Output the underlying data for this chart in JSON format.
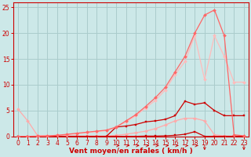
{
  "bg_color": "#cce8e8",
  "grid_color": "#aacccc",
  "xlabel": "Vent moyen/en rafales ( km/h )",
  "xlabel_color": "#cc0000",
  "xlabel_fontsize": 6.5,
  "tick_color": "#cc0000",
  "tick_fontsize": 5.5,
  "xlim": [
    -0.5,
    23.5
  ],
  "ylim": [
    0,
    26
  ],
  "yticks": [
    0,
    5,
    10,
    15,
    20,
    25
  ],
  "xticks": [
    0,
    1,
    2,
    3,
    4,
    5,
    6,
    7,
    8,
    9,
    10,
    11,
    12,
    13,
    14,
    15,
    16,
    17,
    18,
    19,
    20,
    21,
    22,
    23
  ],
  "line_pale_topleft": {
    "x": [
      0,
      1,
      2,
      3,
      4,
      5,
      6,
      7,
      8,
      9,
      10,
      11,
      12,
      13,
      14,
      15,
      16,
      17,
      18,
      19,
      20,
      21,
      22,
      23
    ],
    "y": [
      5.3,
      3.0,
      0.15,
      0.1,
      0.05,
      0.05,
      0.05,
      0.05,
      0.05,
      0.05,
      0.2,
      0.4,
      0.7,
      1.0,
      1.5,
      2.2,
      3.0,
      3.5,
      3.5,
      3.0,
      0.3,
      0.1,
      0.05,
      0.05
    ],
    "color": "#ffaaaa",
    "lw": 0.9,
    "marker": "D",
    "ms": 2.0
  },
  "line_darkred_bottom": {
    "x": [
      0,
      1,
      2,
      3,
      4,
      5,
      6,
      7,
      8,
      9,
      10,
      11,
      12,
      13,
      14,
      15,
      16,
      17,
      18,
      19,
      20,
      21,
      22,
      23
    ],
    "y": [
      0.0,
      0.0,
      0.0,
      0.0,
      0.0,
      0.0,
      0.0,
      0.0,
      0.0,
      0.0,
      0.0,
      0.0,
      0.0,
      0.05,
      0.05,
      0.1,
      0.2,
      0.4,
      0.9,
      0.0,
      0.0,
      0.0,
      0.0,
      0.0
    ],
    "color": "#cc0000",
    "lw": 0.9,
    "marker": "s",
    "ms": 2.0
  },
  "line_darkred_mid": {
    "x": [
      0,
      1,
      2,
      3,
      4,
      5,
      6,
      7,
      8,
      9,
      10,
      11,
      12,
      13,
      14,
      15,
      16,
      17,
      18,
      19,
      20,
      21,
      22,
      23
    ],
    "y": [
      0.0,
      0.0,
      0.0,
      0.0,
      0.0,
      0.0,
      0.0,
      0.0,
      0.0,
      0.0,
      1.8,
      2.0,
      2.3,
      2.8,
      3.0,
      3.3,
      4.0,
      6.8,
      6.2,
      6.5,
      5.0,
      4.0,
      4.0,
      4.0
    ],
    "color": "#cc0000",
    "lw": 0.9,
    "marker": "s",
    "ms": 2.0
  },
  "line_pink_upper": {
    "x": [
      0,
      1,
      2,
      3,
      4,
      5,
      6,
      7,
      8,
      9,
      10,
      11,
      12,
      13,
      14,
      15,
      16,
      17,
      18,
      19,
      20,
      21,
      22,
      23
    ],
    "y": [
      0.0,
      0.0,
      0.05,
      0.1,
      0.2,
      0.4,
      0.6,
      0.8,
      1.0,
      1.2,
      1.8,
      3.0,
      4.2,
      5.8,
      7.5,
      9.5,
      12.5,
      15.5,
      20.0,
      23.5,
      24.5,
      19.5,
      0.3,
      0.1
    ],
    "color": "#ff6666",
    "lw": 0.9,
    "marker": "D",
    "ms": 2.0
  },
  "line_light_pink_top": {
    "x": [
      0,
      1,
      2,
      3,
      4,
      5,
      6,
      7,
      8,
      9,
      10,
      11,
      12,
      13,
      14,
      15,
      16,
      17,
      18,
      19,
      20,
      21,
      22,
      23
    ],
    "y": [
      0.0,
      0.0,
      0.0,
      0.1,
      0.2,
      0.3,
      0.5,
      0.7,
      0.9,
      1.1,
      1.8,
      2.8,
      4.0,
      5.5,
      7.0,
      9.0,
      12.0,
      14.5,
      19.5,
      11.0,
      19.5,
      15.5,
      10.5,
      10.5
    ],
    "color": "#ffbbbb",
    "lw": 0.9,
    "marker": "D",
    "ms": 2.0
  },
  "spine_color": "#cc0000",
  "arrow_color": "#cc0000"
}
